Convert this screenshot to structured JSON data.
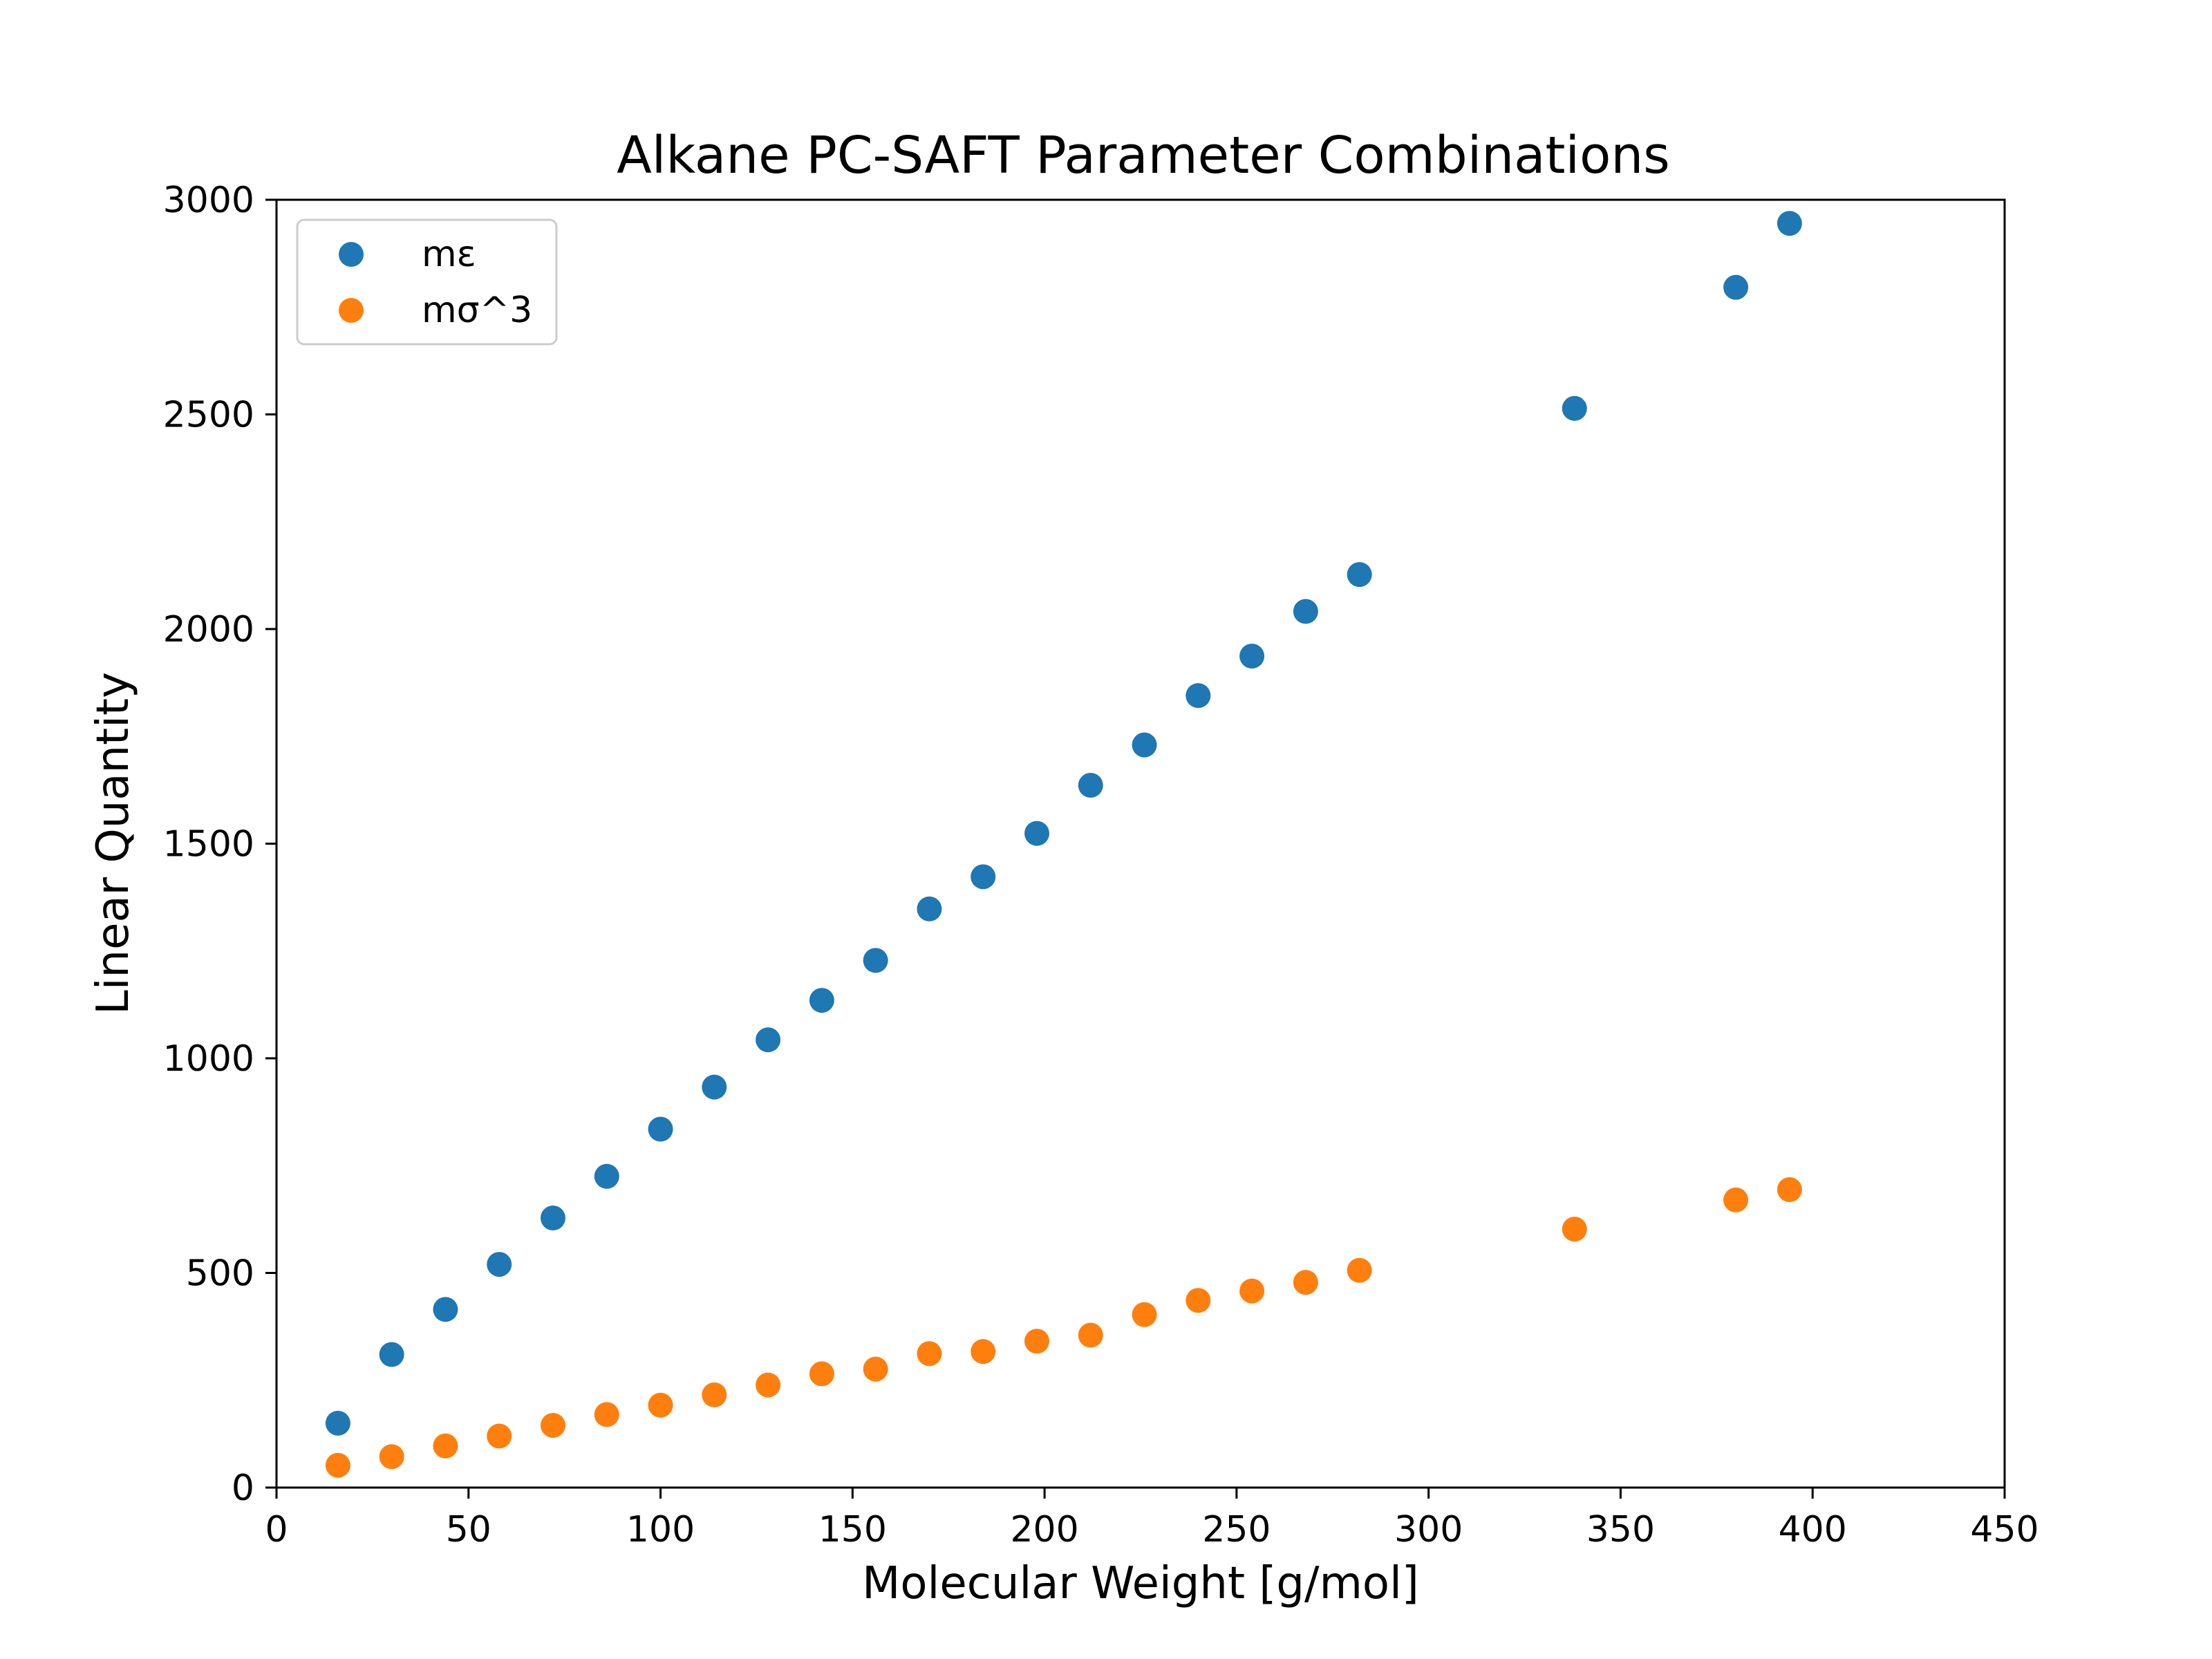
{
  "chart_data": {
    "type": "scatter",
    "title": "Alkane PC-SAFT Parameter Combinations",
    "xlabel": "Molecular Weight [g/mol]",
    "ylabel": "Linear Quantity",
    "xlim": [
      0,
      450
    ],
    "ylim": [
      0,
      3000
    ],
    "xticks": [
      0,
      50,
      100,
      150,
      200,
      250,
      300,
      350,
      400,
      450
    ],
    "yticks": [
      0,
      500,
      1000,
      1500,
      2000,
      2500,
      3000
    ],
    "grid": false,
    "legend_position": "top-left",
    "x": [
      16,
      30,
      44,
      58,
      72,
      86,
      100,
      114,
      128,
      142,
      156,
      170,
      184,
      198,
      212,
      226,
      240,
      254,
      268,
      282,
      338,
      380,
      394
    ],
    "series": [
      {
        "name": "mε",
        "color": "#1f77b4",
        "values": [
          150,
          310,
          415,
          520,
          628,
          725,
          835,
          933,
          1043,
          1135,
          1228,
          1348,
          1423,
          1524,
          1636,
          1730,
          1845,
          1937,
          2041,
          2127,
          2514,
          2796,
          2945
        ]
      },
      {
        "name": "mσ^3",
        "color": "#ff7f0e",
        "values": [
          52,
          72,
          97,
          120,
          145,
          170,
          192,
          216,
          239,
          265,
          276,
          312,
          317,
          341,
          355,
          403,
          436,
          458,
          478,
          506,
          602,
          670,
          694
        ]
      }
    ]
  }
}
